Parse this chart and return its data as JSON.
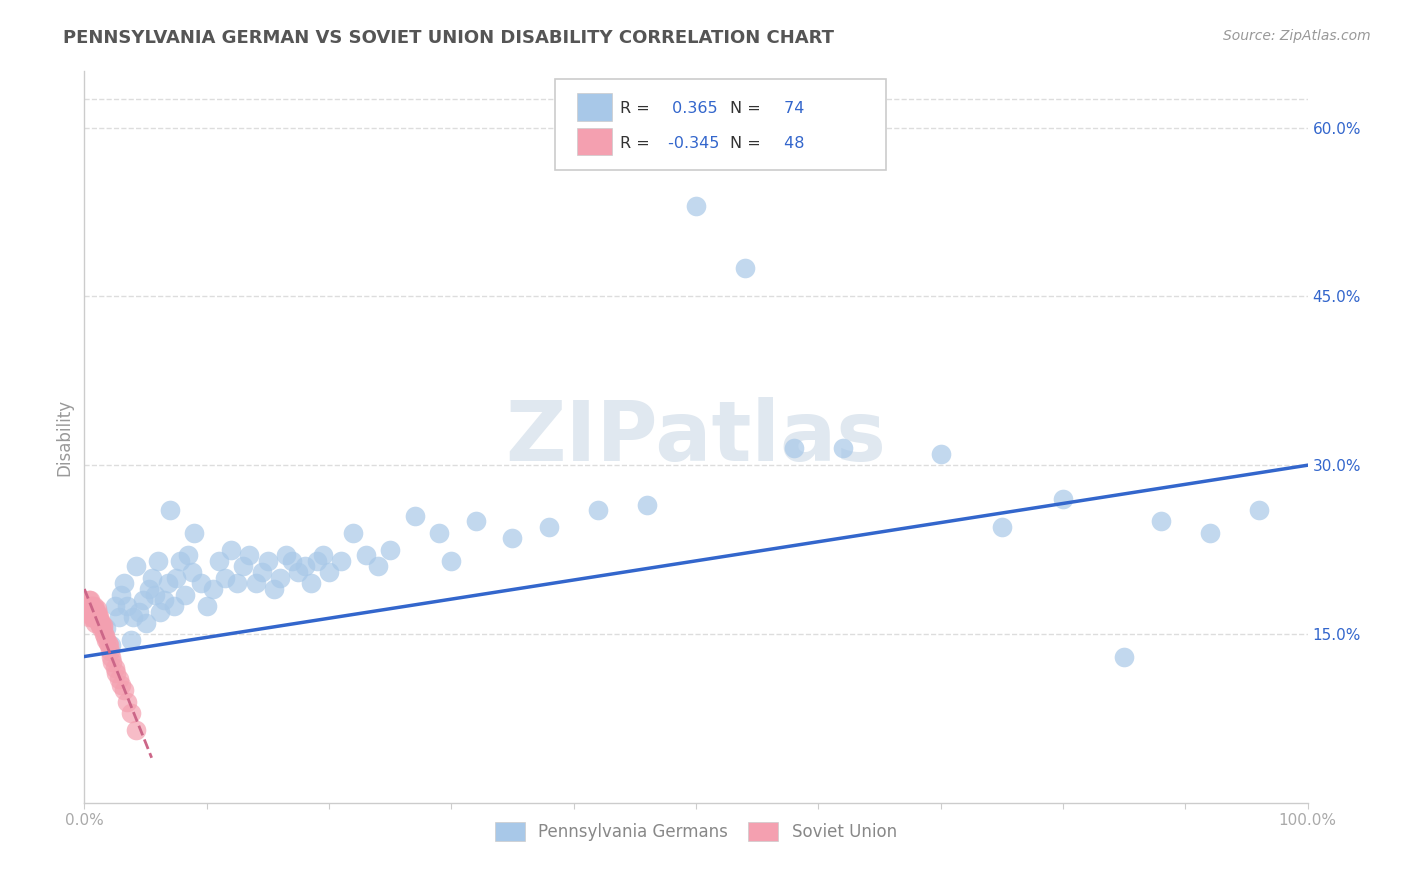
{
  "title": "PENNSYLVANIA GERMAN VS SOVIET UNION DISABILITY CORRELATION CHART",
  "source": "Source: ZipAtlas.com",
  "ylabel": "Disability",
  "r_blue": 0.365,
  "n_blue": 74,
  "r_pink": -0.345,
  "n_pink": 48,
  "legend_labels": [
    "Pennsylvania Germans",
    "Soviet Union"
  ],
  "blue_color": "#a8c8e8",
  "pink_color": "#f4a0b0",
  "blue_line_color": "#3366cc",
  "pink_line_color": "#cc6688",
  "title_color": "#555555",
  "source_color": "#999999",
  "watermark": "ZIPatlas",
  "watermark_color": "#e0e8f0",
  "axis_label_color": "#999999",
  "tick_color": "#aaaaaa",
  "grid_color": "#dddddd",
  "r_value_color": "#3366cc",
  "label_color": "#444444",
  "xlim": [
    0.0,
    1.0
  ],
  "ylim": [
    0.0,
    0.65
  ],
  "yticks": [
    0.15,
    0.3,
    0.45,
    0.6
  ],
  "ytick_labels": [
    "15.0%",
    "30.0%",
    "45.0%",
    "60.0%"
  ],
  "xtick_ends": [
    "0.0%",
    "100.0%"
  ],
  "blue_scatter_x": [
    0.018,
    0.022,
    0.025,
    0.028,
    0.03,
    0.032,
    0.035,
    0.038,
    0.04,
    0.042,
    0.045,
    0.048,
    0.05,
    0.053,
    0.055,
    0.058,
    0.06,
    0.062,
    0.065,
    0.068,
    0.07,
    0.073,
    0.075,
    0.078,
    0.082,
    0.085,
    0.088,
    0.09,
    0.095,
    0.1,
    0.105,
    0.11,
    0.115,
    0.12,
    0.125,
    0.13,
    0.135,
    0.14,
    0.145,
    0.15,
    0.155,
    0.16,
    0.165,
    0.17,
    0.175,
    0.18,
    0.185,
    0.19,
    0.195,
    0.2,
    0.21,
    0.22,
    0.23,
    0.24,
    0.25,
    0.27,
    0.29,
    0.3,
    0.32,
    0.35,
    0.38,
    0.42,
    0.46,
    0.5,
    0.54,
    0.58,
    0.62,
    0.7,
    0.75,
    0.8,
    0.85,
    0.88,
    0.92,
    0.96
  ],
  "blue_scatter_y": [
    0.155,
    0.14,
    0.175,
    0.165,
    0.185,
    0.195,
    0.175,
    0.145,
    0.165,
    0.21,
    0.17,
    0.18,
    0.16,
    0.19,
    0.2,
    0.185,
    0.215,
    0.17,
    0.18,
    0.195,
    0.26,
    0.175,
    0.2,
    0.215,
    0.185,
    0.22,
    0.205,
    0.24,
    0.195,
    0.175,
    0.19,
    0.215,
    0.2,
    0.225,
    0.195,
    0.21,
    0.22,
    0.195,
    0.205,
    0.215,
    0.19,
    0.2,
    0.22,
    0.215,
    0.205,
    0.21,
    0.195,
    0.215,
    0.22,
    0.205,
    0.215,
    0.24,
    0.22,
    0.21,
    0.225,
    0.255,
    0.24,
    0.215,
    0.25,
    0.235,
    0.245,
    0.26,
    0.265,
    0.53,
    0.475,
    0.315,
    0.315,
    0.31,
    0.245,
    0.27,
    0.13,
    0.25,
    0.24,
    0.26
  ],
  "pink_scatter_x": [
    0.002,
    0.003,
    0.004,
    0.004,
    0.005,
    0.005,
    0.005,
    0.006,
    0.006,
    0.006,
    0.007,
    0.007,
    0.007,
    0.008,
    0.008,
    0.008,
    0.009,
    0.009,
    0.009,
    0.01,
    0.01,
    0.01,
    0.011,
    0.011,
    0.012,
    0.012,
    0.013,
    0.013,
    0.014,
    0.014,
    0.015,
    0.015,
    0.016,
    0.017,
    0.018,
    0.019,
    0.02,
    0.021,
    0.022,
    0.023,
    0.025,
    0.026,
    0.028,
    0.03,
    0.032,
    0.035,
    0.038,
    0.042
  ],
  "pink_scatter_y": [
    0.175,
    0.17,
    0.165,
    0.18,
    0.17,
    0.175,
    0.18,
    0.165,
    0.17,
    0.175,
    0.168,
    0.172,
    0.165,
    0.17,
    0.165,
    0.175,
    0.168,
    0.172,
    0.16,
    0.168,
    0.172,
    0.165,
    0.162,
    0.168,
    0.16,
    0.165,
    0.158,
    0.162,
    0.155,
    0.16,
    0.155,
    0.158,
    0.15,
    0.148,
    0.145,
    0.142,
    0.14,
    0.135,
    0.13,
    0.125,
    0.12,
    0.115,
    0.11,
    0.105,
    0.1,
    0.09,
    0.08,
    0.065
  ],
  "blue_line_x": [
    0.0,
    1.0
  ],
  "blue_line_y": [
    0.13,
    0.3
  ],
  "pink_line_x": [
    0.0,
    0.055
  ],
  "pink_line_y": [
    0.19,
    0.04
  ]
}
